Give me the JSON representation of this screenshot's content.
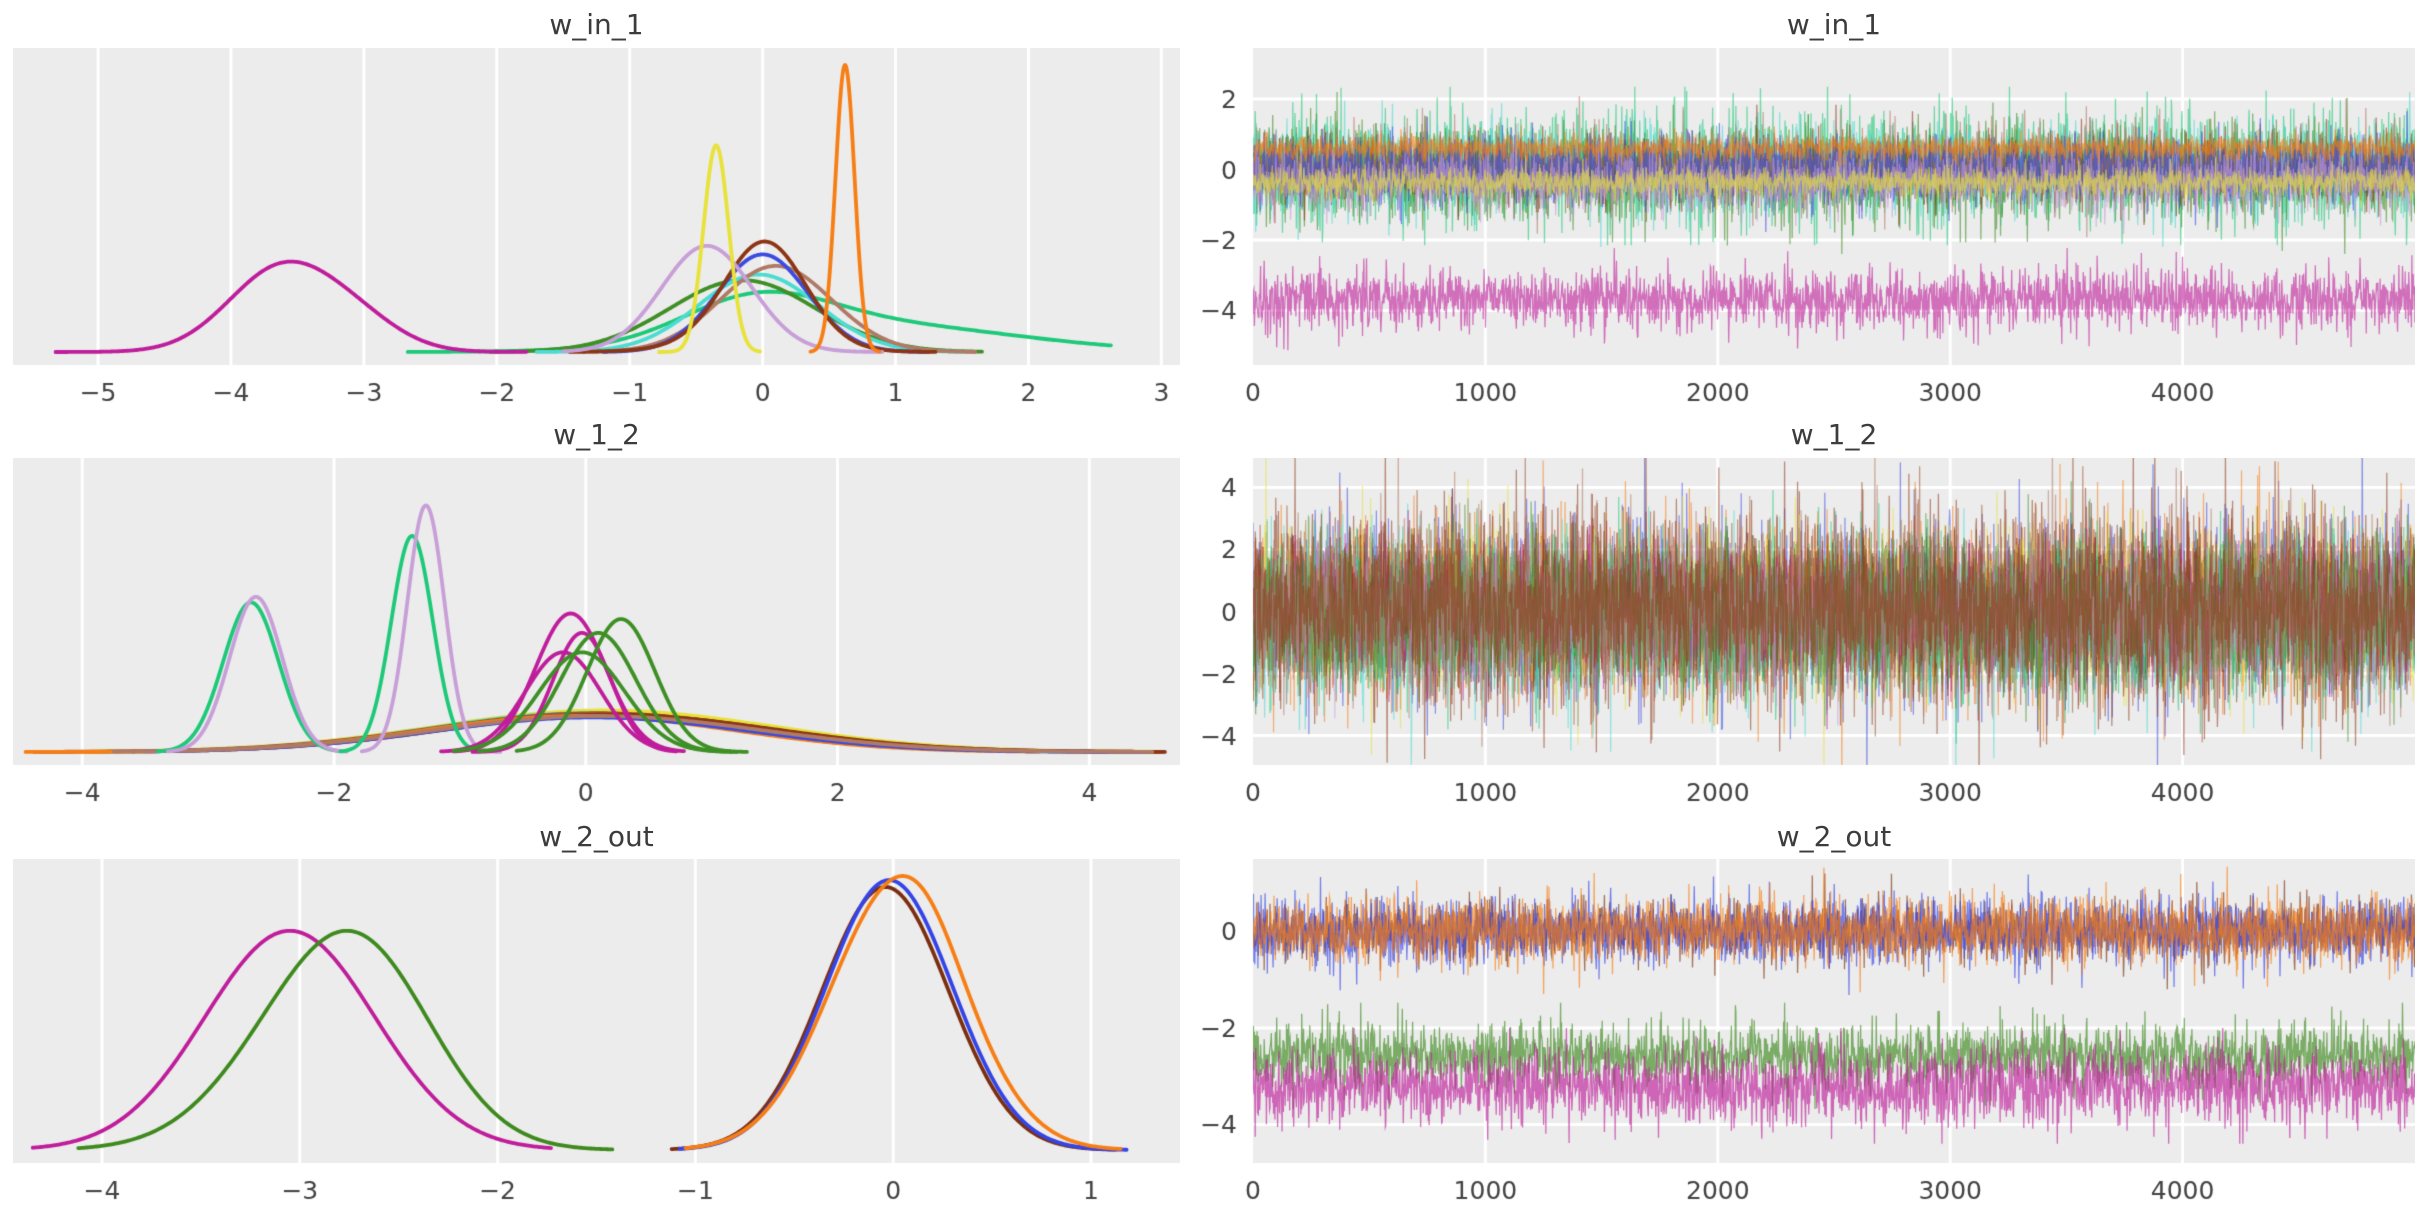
{
  "style": {
    "figure_bg": "#ffffff",
    "axes_bg": "#ececec",
    "grid_color": "#ffffff",
    "tick_label_color": "#424242",
    "title_color": "#3c3c3c",
    "palette": {
      "magenta": "#bf1d9b",
      "yellow": "#e8e23a",
      "orange": "#f77e14",
      "plum": "#c89fd8",
      "brown": "#8c3514",
      "blue": "#3b4be0",
      "rosybrown": "#b07a66",
      "cyan": "#4bdcd2",
      "darkgreen": "#3e8f25",
      "springgreen": "#1dc979",
      "sienna": "#a0522d",
      "forestgreen": "#3e8a1e",
      "darkbrown": "#7c2f10",
      "deepblue": "#3444e8"
    }
  },
  "chart_data": [
    {
      "id": "kde-w_in_1",
      "type": "line",
      "kind": "kde",
      "title": "w_in_1",
      "xlabel_ticks": [
        "-5",
        "-4",
        "-3",
        "-2",
        "-1",
        "0",
        "1",
        "2",
        "3"
      ],
      "xticks": [
        -5,
        -4,
        -3,
        -2,
        -1,
        0,
        1,
        2,
        3
      ],
      "xlim": [
        -5.64,
        3.14
      ],
      "grid": "vertical",
      "curves": [
        {
          "c": "#1dc979",
          "peak": 0.21,
          "sup": [
            -2.67,
            2.62
          ],
          "comp": [
            {
              "m": -0.05,
              "s": 0.55,
              "w": 0.75
            },
            {
              "m": 0.85,
              "s": 1.05,
              "w": 0.5
            }
          ]
        },
        {
          "c": "#3e8f25",
          "peak": 0.25,
          "sup": [
            -2.05,
            1.65
          ],
          "comp": [
            {
              "m": -0.15,
              "s": 0.55,
              "w": 1
            }
          ]
        },
        {
          "c": "#4bdcd2",
          "peak": 0.27,
          "sup": [
            -1.7,
            1.5
          ],
          "comp": [
            {
              "m": -0.03,
              "s": 0.45,
              "w": 1
            }
          ]
        },
        {
          "c": "#b07a66",
          "peak": 0.3,
          "sup": [
            -1.35,
            1.6
          ],
          "comp": [
            {
              "m": 0.1,
              "s": 0.42,
              "w": 1
            }
          ]
        },
        {
          "c": "#3b4be0",
          "peak": 0.34,
          "sup": [
            -1.2,
            1.25
          ],
          "comp": [
            {
              "m": 0.0,
              "s": 0.34,
              "w": 1
            }
          ]
        },
        {
          "c": "#8c3514",
          "peak": 0.385,
          "sup": [
            -1.45,
            1.3
          ],
          "comp": [
            {
              "m": 0.02,
              "s": 0.3,
              "w": 1
            },
            {
              "m": -0.1,
              "s": 0.45,
              "w": 0.12
            }
          ]
        },
        {
          "c": "#c89fd8",
          "peak": 0.37,
          "sup": [
            -1.5,
            0.9
          ],
          "comp": [
            {
              "m": -0.42,
              "s": 0.34,
              "w": 1
            }
          ]
        },
        {
          "c": "#bf1d9b",
          "peak": 0.315,
          "sup": [
            -5.32,
            -1.78
          ],
          "comp": [
            {
              "m": -3.62,
              "s": 0.4,
              "w": 1
            },
            {
              "m": -3.05,
              "s": 0.34,
              "w": 0.3
            }
          ]
        },
        {
          "c": "#e8e23a",
          "peak": 0.72,
          "sup": [
            -0.78,
            -0.02
          ],
          "comp": [
            {
              "m": -0.35,
              "s": 0.095,
              "w": 1
            }
          ]
        },
        {
          "c": "#f77e14",
          "peak": 1.0,
          "sup": [
            0.36,
            0.88
          ],
          "comp": [
            {
              "m": 0.62,
              "s": 0.072,
              "w": 1
            }
          ]
        }
      ]
    },
    {
      "id": "trace-w_in_1",
      "type": "line",
      "kind": "trace",
      "title": "w_in_1",
      "xlabel_ticks": [
        "0",
        "1000",
        "2000",
        "3000",
        "4000"
      ],
      "xticks": [
        0,
        1000,
        2000,
        3000,
        4000
      ],
      "xlim": [
        0,
        5000
      ],
      "yticks": [
        2,
        0,
        -2,
        -4
      ],
      "ylim": [
        -5.55,
        3.45
      ],
      "grid": "both",
      "alpha": 0.6,
      "n": 2600,
      "seed": 101,
      "spike_p": 0.025,
      "spike_f": 1.8,
      "traces": [
        {
          "c": "#1dc979",
          "ctr": 0.1,
          "sd": 0.8,
          "max": 2.25
        },
        {
          "c": "#4bdcd2",
          "ctr": 0.0,
          "sd": 0.62,
          "max": 2.2
        },
        {
          "c": "#3e8f25",
          "ctr": -0.1,
          "sd": 0.64,
          "max": 2.3
        },
        {
          "c": "#8c3514",
          "ctr": 0.0,
          "sd": 0.46
        },
        {
          "c": "#b07a66",
          "ctr": 0.08,
          "sd": 0.5
        },
        {
          "c": "#3b4be0",
          "ctr": 0.0,
          "sd": 0.46
        },
        {
          "c": "#c89fd8",
          "ctr": -0.35,
          "sd": 0.42
        },
        {
          "c": "#e8e23a",
          "ctr": -0.35,
          "sd": 0.2
        },
        {
          "c": "#f77e14",
          "ctr": 0.62,
          "sd": 0.16
        },
        {
          "c": "#bf1d9b",
          "ctr": -3.68,
          "sd": 0.42,
          "max": 1.45
        }
      ]
    },
    {
      "id": "kde-w_1_2",
      "type": "line",
      "kind": "kde",
      "title": "w_1_2",
      "xlabel_ticks": [
        "-4",
        "-2",
        "0",
        "2",
        "4"
      ],
      "xticks": [
        -4,
        -2,
        0,
        2,
        4
      ],
      "xlim": [
        -4.55,
        4.72
      ],
      "grid": "vertical",
      "curves": [
        {
          "c": "#e8e23a",
          "peak": 0.15,
          "sup": [
            -3.95,
            4.55
          ],
          "comp": [
            {
              "m": 0.15,
              "s": 1.35,
              "w": 1
            }
          ]
        },
        {
          "c": "#4bdcd2",
          "peak": 0.14,
          "sup": [
            -3.85,
            4.5
          ],
          "comp": [
            {
              "m": 0.0,
              "s": 1.25,
              "w": 1
            }
          ]
        },
        {
          "c": "#a0522d",
          "peak": 0.14,
          "sup": [
            -4.38,
            4.58
          ],
          "comp": [
            {
              "m": 0.1,
              "s": 1.32,
              "w": 1
            }
          ]
        },
        {
          "c": "#8c3514",
          "peak": 0.135,
          "sup": [
            -3.6,
            4.6
          ],
          "comp": [
            {
              "m": 0.2,
              "s": 1.3,
              "w": 1
            }
          ]
        },
        {
          "c": "#f77e14",
          "peak": 0.13,
          "sup": [
            -4.45,
            3.6
          ],
          "comp": [
            {
              "m": -0.05,
              "s": 1.22,
              "w": 1
            }
          ]
        },
        {
          "c": "#3b4be0",
          "peak": 0.125,
          "sup": [
            -3.5,
            4.45
          ],
          "comp": [
            {
              "m": 0.05,
              "s": 1.25,
              "w": 1
            }
          ]
        },
        {
          "c": "#b07a66",
          "peak": 0.13,
          "sup": [
            -3.75,
            4.5
          ],
          "comp": [
            {
              "m": 0.1,
              "s": 1.3,
              "w": 1
            }
          ]
        },
        {
          "c": "#1dc979",
          "peak": 0.54,
          "sup": [
            -3.4,
            -1.95
          ],
          "comp": [
            {
              "m": -2.66,
              "s": 0.22,
              "w": 1
            }
          ]
        },
        {
          "c": "#c89fd8",
          "peak": 0.56,
          "sup": [
            -3.32,
            -1.9
          ],
          "comp": [
            {
              "m": -2.62,
              "s": 0.21,
              "w": 1
            }
          ]
        },
        {
          "c": "#1dc979",
          "peak": 0.78,
          "sup": [
            -1.95,
            -0.82
          ],
          "comp": [
            {
              "m": -1.38,
              "s": 0.165,
              "w": 1
            }
          ]
        },
        {
          "c": "#c89fd8",
          "peak": 0.89,
          "sup": [
            -1.78,
            -0.68
          ],
          "comp": [
            {
              "m": -1.27,
              "s": 0.148,
              "w": 1
            }
          ]
        },
        {
          "c": "#bf1d9b",
          "peak": 0.5,
          "sup": [
            -1.05,
            0.78
          ],
          "comp": [
            {
              "m": -0.12,
              "s": 0.28,
              "w": 1
            }
          ]
        },
        {
          "c": "#bf1d9b",
          "peak": 0.43,
          "sup": [
            -0.9,
            0.72
          ],
          "comp": [
            {
              "m": -0.03,
              "s": 0.23,
              "w": 1
            }
          ]
        },
        {
          "c": "#bf1d9b",
          "peak": 0.36,
          "sup": [
            -1.15,
            0.6
          ],
          "comp": [
            {
              "m": -0.18,
              "s": 0.3,
              "w": 1
            }
          ]
        },
        {
          "c": "#3e8f25",
          "peak": 0.48,
          "sup": [
            -0.55,
            1.28
          ],
          "comp": [
            {
              "m": 0.28,
              "s": 0.27,
              "w": 1
            }
          ]
        },
        {
          "c": "#3e8f25",
          "peak": 0.43,
          "sup": [
            -0.85,
            1.15
          ],
          "comp": [
            {
              "m": 0.1,
              "s": 0.3,
              "w": 1
            }
          ]
        },
        {
          "c": "#3e8f25",
          "peak": 0.36,
          "sup": [
            -1.05,
            1.2
          ],
          "comp": [
            {
              "m": -0.03,
              "s": 0.34,
              "w": 1
            }
          ]
        }
      ]
    },
    {
      "id": "trace-w_1_2",
      "type": "line",
      "kind": "trace",
      "title": "w_1_2",
      "xlabel_ticks": [
        "0",
        "1000",
        "2000",
        "3000",
        "4000"
      ],
      "xticks": [
        0,
        1000,
        2000,
        3000,
        4000
      ],
      "xlim": [
        0,
        5000
      ],
      "yticks": [
        4,
        2,
        0,
        -2,
        -4
      ],
      "ylim": [
        -4.95,
        4.95
      ],
      "grid": "both",
      "alpha": 0.55,
      "n": 2600,
      "seed": 202,
      "spike_p": 0.02,
      "spike_f": 1.8,
      "traces": [
        {
          "c": "#3b4be0",
          "ctr": 0.0,
          "sd": 1.45
        },
        {
          "c": "#f77e14",
          "ctr": 0.0,
          "sd": 1.38
        },
        {
          "c": "#a0522d",
          "ctr": 0.0,
          "sd": 1.3
        },
        {
          "c": "#8c3514",
          "ctr": 0.0,
          "sd": 1.42
        },
        {
          "c": "#e8e23a",
          "ctr": 0.0,
          "sd": 1.25
        },
        {
          "c": "#4bdcd2",
          "ctr": -0.2,
          "sd": 1.2
        },
        {
          "c": "#1dc979",
          "ctr": -0.2,
          "sd": 1.15
        },
        {
          "c": "#bf1d9b",
          "ctr": 0.0,
          "sd": 0.95
        },
        {
          "c": "#c89fd8",
          "ctr": 0.0,
          "sd": 1.0
        },
        {
          "c": "#3e8f25",
          "ctr": 0.0,
          "sd": 1.05
        },
        {
          "c": "#b07a66",
          "ctr": 0.0,
          "sd": 1.3
        },
        {
          "c": "#8c3514",
          "ctr": 0.1,
          "sd": 1.35
        }
      ]
    },
    {
      "id": "kde-w_2_out",
      "type": "line",
      "kind": "kde",
      "title": "w_2_out",
      "xlabel_ticks": [
        "-4",
        "-3",
        "-2",
        "-1",
        "0",
        "1"
      ],
      "xticks": [
        -4,
        -3,
        -2,
        -1,
        0,
        1
      ],
      "xlim": [
        -4.45,
        1.45
      ],
      "grid": "vertical",
      "curves": [
        {
          "c": "#bf1d9b",
          "peak": 0.8,
          "sup": [
            -4.35,
            -1.73
          ],
          "comp": [
            {
              "m": -3.05,
              "s": 0.43,
              "w": 1
            }
          ]
        },
        {
          "c": "#3e8a1e",
          "peak": 0.8,
          "sup": [
            -4.12,
            -1.42
          ],
          "comp": [
            {
              "m": -2.88,
              "s": 0.42,
              "w": 1
            },
            {
              "m": -2.62,
              "s": 0.35,
              "w": 0.6
            }
          ]
        },
        {
          "c": "#7c2f10",
          "peak": 0.96,
          "sup": [
            -1.12,
            1.12
          ],
          "comp": [
            {
              "m": -0.04,
              "s": 0.32,
              "w": 1
            }
          ]
        },
        {
          "c": "#3444e8",
          "peak": 0.985,
          "sup": [
            -1.08,
            1.18
          ],
          "comp": [
            {
              "m": -0.02,
              "s": 0.32,
              "w": 1
            }
          ]
        },
        {
          "c": "#f77e14",
          "peak": 1.0,
          "sup": [
            -1.05,
            1.15
          ],
          "comp": [
            {
              "m": 0.02,
              "s": 0.34,
              "w": 1
            },
            {
              "m": 0.18,
              "s": 0.15,
              "w": 0.06
            }
          ]
        }
      ]
    },
    {
      "id": "trace-w_2_out",
      "type": "line",
      "kind": "trace",
      "title": "w_2_out",
      "xlabel_ticks": [
        "0",
        "1000",
        "2000",
        "3000",
        "4000"
      ],
      "xticks": [
        0,
        1000,
        2000,
        3000,
        4000
      ],
      "xlim": [
        0,
        5000
      ],
      "yticks": [
        0,
        -2,
        -4
      ],
      "ylim": [
        -4.8,
        1.5
      ],
      "grid": "both",
      "alpha": 0.65,
      "n": 2600,
      "seed": 303,
      "spike_p": 0.025,
      "spike_f": 1.8,
      "traces": [
        {
          "c": "#7c2f10",
          "ctr": 0.0,
          "sd": 0.3
        },
        {
          "c": "#3444e8",
          "ctr": 0.0,
          "sd": 0.33
        },
        {
          "c": "#f77e14",
          "ctr": 0.02,
          "sd": 0.33
        },
        {
          "c": "#3e8a1e",
          "ctr": -2.58,
          "sd": 0.33,
          "max": 1.1
        },
        {
          "c": "#bf1d9b",
          "ctr": -3.2,
          "sd": 0.38,
          "max": 1.2
        }
      ]
    }
  ]
}
